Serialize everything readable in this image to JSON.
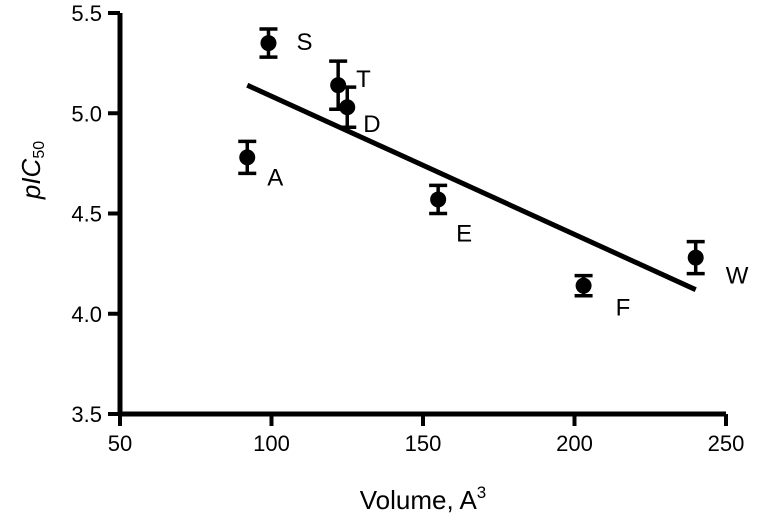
{
  "chart_data": {
    "type": "scatter",
    "xlabel": "Volume, A",
    "xlabel_sup": "3",
    "ylabel_main": "pIC",
    "ylabel_sub": "50",
    "xlim": [
      50,
      250
    ],
    "ylim": [
      3.5,
      5.5
    ],
    "xticks": [
      "50",
      "100",
      "150",
      "200",
      "250"
    ],
    "yticks": [
      "3.5",
      "4.0",
      "4.5",
      "5.0",
      "5.5"
    ],
    "grid": false,
    "points": [
      {
        "label": "S",
        "x": 99,
        "y": 5.35,
        "err": 0.07
      },
      {
        "label": "T",
        "x": 122,
        "y": 5.14,
        "err": 0.12
      },
      {
        "label": "D",
        "x": 125,
        "y": 5.03,
        "err": 0.1
      },
      {
        "label": "A",
        "x": 92,
        "y": 4.78,
        "err": 0.08
      },
      {
        "label": "E",
        "x": 155,
        "y": 4.57,
        "err": 0.07
      },
      {
        "label": "F",
        "x": 203,
        "y": 4.14,
        "err": 0.05
      },
      {
        "label": "W",
        "x": 240,
        "y": 4.28,
        "err": 0.08
      }
    ],
    "fit_line": {
      "x": [
        92,
        240
      ],
      "y": [
        5.14,
        4.12
      ]
    }
  }
}
